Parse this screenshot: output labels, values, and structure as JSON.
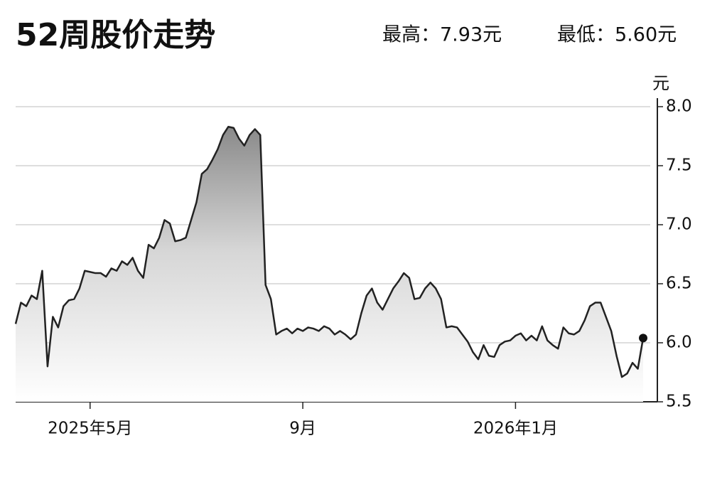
{
  "chart_data": {
    "type": "line",
    "title": "52周股价走势",
    "high_label": "最高：7.93元",
    "low_label": "最低：5.60元",
    "y_axis_label": "元",
    "categories": [
      null,
      null,
      null,
      null,
      null,
      null,
      null,
      null,
      null,
      null,
      null,
      null,
      null,
      null,
      "2025年5月",
      null,
      null,
      null,
      null,
      null,
      null,
      null,
      null,
      null,
      null,
      null,
      null,
      null,
      null,
      null,
      null,
      null,
      null,
      null,
      null,
      null,
      null,
      null,
      null,
      null,
      null,
      null,
      null,
      null,
      null,
      null,
      null,
      null,
      null,
      null,
      null,
      null,
      null,
      null,
      "9月",
      null,
      null,
      null,
      null,
      null,
      null,
      null,
      null,
      null,
      null,
      null,
      null,
      null,
      null,
      null,
      null,
      null,
      null,
      null,
      null,
      null,
      null,
      null,
      null,
      null,
      null,
      null,
      null,
      null,
      null,
      null,
      null,
      null,
      null,
      null,
      null,
      null,
      null,
      null,
      "2026年1月",
      null,
      null,
      null,
      null,
      null,
      null,
      null,
      null,
      null,
      null,
      null,
      null,
      null,
      null,
      null,
      null,
      null,
      null,
      null,
      null,
      null,
      null,
      null,
      null
    ],
    "values": [
      6.16,
      6.34,
      6.31,
      6.4,
      6.37,
      6.61,
      5.8,
      6.22,
      6.13,
      6.31,
      6.36,
      6.37,
      6.46,
      6.61,
      6.6,
      6.59,
      6.59,
      6.56,
      6.63,
      6.61,
      6.69,
      6.66,
      6.72,
      6.61,
      6.55,
      6.83,
      6.8,
      6.89,
      7.04,
      7.01,
      6.86,
      6.87,
      6.89,
      7.04,
      7.19,
      7.43,
      7.47,
      7.55,
      7.64,
      7.76,
      7.83,
      7.82,
      7.73,
      7.67,
      7.76,
      7.81,
      7.76,
      6.49,
      6.37,
      6.07,
      6.1,
      6.12,
      6.08,
      6.12,
      6.1,
      6.13,
      6.12,
      6.1,
      6.14,
      6.12,
      6.07,
      6.1,
      6.07,
      6.03,
      6.07,
      6.25,
      6.4,
      6.46,
      6.34,
      6.28,
      6.37,
      6.46,
      6.52,
      6.59,
      6.55,
      6.37,
      6.38,
      6.46,
      6.51,
      6.46,
      6.37,
      6.13,
      6.14,
      6.13,
      6.07,
      6.01,
      5.92,
      5.86,
      5.98,
      5.89,
      5.88,
      5.98,
      6.01,
      6.02,
      6.06,
      6.08,
      6.02,
      6.06,
      6.02,
      6.14,
      6.02,
      5.98,
      5.95,
      6.13,
      6.08,
      6.07,
      6.1,
      6.19,
      6.31,
      6.34,
      6.34,
      6.22,
      6.1,
      5.89,
      5.71,
      5.74,
      5.83,
      5.78,
      6.04
    ],
    "color": "#222222",
    "ylim": [
      5.5,
      8.0
    ],
    "yticks": [
      5.5,
      {
        "value": 6,
        "label": "6.0"
      },
      6.5,
      {
        "value": 7,
        "label": "7.0"
      },
      7.5,
      {
        "value": 8,
        "label": "8.0"
      }
    ],
    "grid": true,
    "area_fill": true,
    "end_marker": true
  }
}
